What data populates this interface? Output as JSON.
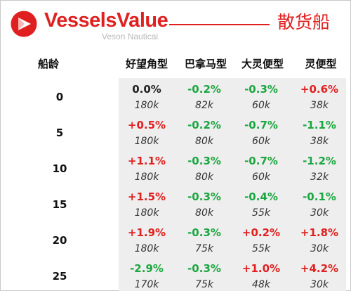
{
  "header": {
    "brand_name": "VesselsValue",
    "brand_sub": "Veson Nautical",
    "title": "散货船",
    "logo_icon": "vesselsvalue-logo-icon",
    "accent_color": "#e02020"
  },
  "table": {
    "age_header": "船龄",
    "columns": [
      "好望角型",
      "巴拿马型",
      "大灵便型",
      "灵便型"
    ],
    "rows": [
      {
        "age": "0",
        "cells": [
          {
            "pct": "0.0%",
            "price": "180k"
          },
          {
            "pct": "-0.2%",
            "price": "82k"
          },
          {
            "pct": "-0.3%",
            "price": "60k"
          },
          {
            "pct": "+0.6%",
            "price": "38k"
          }
        ]
      },
      {
        "age": "5",
        "cells": [
          {
            "pct": "+0.5%",
            "price": "180k"
          },
          {
            "pct": "-0.2%",
            "price": "80k"
          },
          {
            "pct": "-0.7%",
            "price": "60k"
          },
          {
            "pct": "-1.1%",
            "price": "38k"
          }
        ]
      },
      {
        "age": "10",
        "cells": [
          {
            "pct": "+1.1%",
            "price": "180k"
          },
          {
            "pct": "-0.3%",
            "price": "80k"
          },
          {
            "pct": "-0.7%",
            "price": "60k"
          },
          {
            "pct": "-1.2%",
            "price": "32k"
          }
        ]
      },
      {
        "age": "15",
        "cells": [
          {
            "pct": "+1.5%",
            "price": "180k"
          },
          {
            "pct": "-0.3%",
            "price": "80k"
          },
          {
            "pct": "-0.4%",
            "price": "55k"
          },
          {
            "pct": "-0.1%",
            "price": "30k"
          }
        ]
      },
      {
        "age": "20",
        "cells": [
          {
            "pct": "+1.9%",
            "price": "180k"
          },
          {
            "pct": "-0.3%",
            "price": "75k"
          },
          {
            "pct": "+0.2%",
            "price": "55k"
          },
          {
            "pct": "+1.8%",
            "price": "30k"
          }
        ]
      },
      {
        "age": "25",
        "cells": [
          {
            "pct": "-2.9%",
            "price": "170k"
          },
          {
            "pct": "-0.3%",
            "price": "75k"
          },
          {
            "pct": "+1.0%",
            "price": "48k"
          },
          {
            "pct": "+4.2%",
            "price": "30k"
          }
        ]
      }
    ],
    "colors": {
      "positive": "#e02020",
      "negative": "#1aa640",
      "neutral": "#222222",
      "shade": "#eeeeee"
    }
  }
}
